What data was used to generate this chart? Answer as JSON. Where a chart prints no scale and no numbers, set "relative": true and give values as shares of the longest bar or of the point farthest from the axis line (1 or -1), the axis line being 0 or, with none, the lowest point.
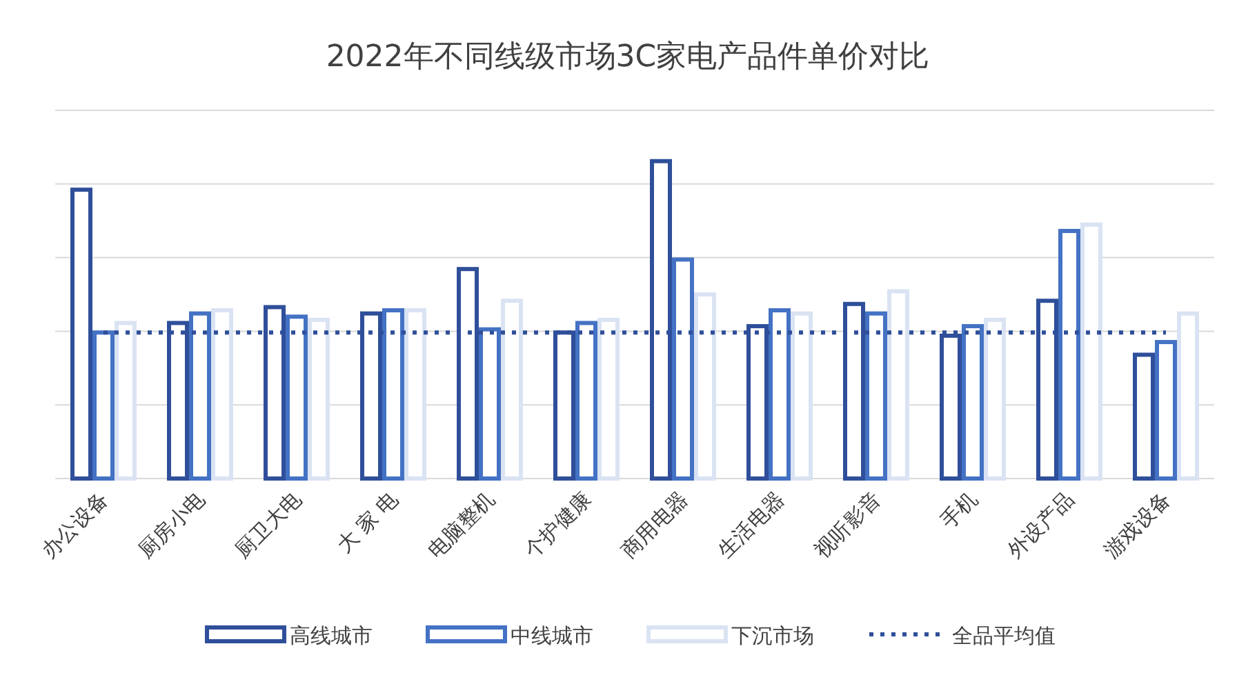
{
  "chart_data": {
    "type": "bar",
    "title": "2022年不同线级市场3C家电产品件单价对比",
    "relative": true,
    "grid": "y",
    "legend": "bottom",
    "categories": [
      "办公设备",
      "厨房小电",
      "厨卫大电",
      "大 家 电",
      "电脑整机",
      "个护健康",
      "商用电器",
      "生活电器",
      "视听影音",
      "手机",
      "外设产品",
      "游戏设备"
    ],
    "series": [
      {
        "name": "高线城市",
        "color": "#2f4f9a",
        "values": [
          0.91,
          0.49,
          0.54,
          0.52,
          0.66,
          0.46,
          1,
          0.48,
          0.55,
          0.45,
          0.56,
          0.39
        ]
      },
      {
        "name": "中线城市",
        "color": "#4472c4",
        "values": [
          0.46,
          0.52,
          0.51,
          0.53,
          0.47,
          0.49,
          0.69,
          0.53,
          0.52,
          0.48,
          0.78,
          0.43
        ]
      },
      {
        "name": "下沉市场",
        "color": "#dae3f3",
        "values": [
          0.49,
          0.53,
          0.5,
          0.53,
          0.56,
          0.5,
          0.58,
          0.52,
          0.59,
          0.5,
          0.8,
          0.52
        ]
      },
      {
        "name": "全品平均值",
        "type": "line",
        "line_style": "dotted",
        "color": "#2f4f9a",
        "values": [
          0.46,
          0.46,
          0.46,
          0.46,
          0.46,
          0.46,
          0.46,
          0.46,
          0.46,
          0.46,
          0.46,
          0.46
        ]
      }
    ]
  }
}
